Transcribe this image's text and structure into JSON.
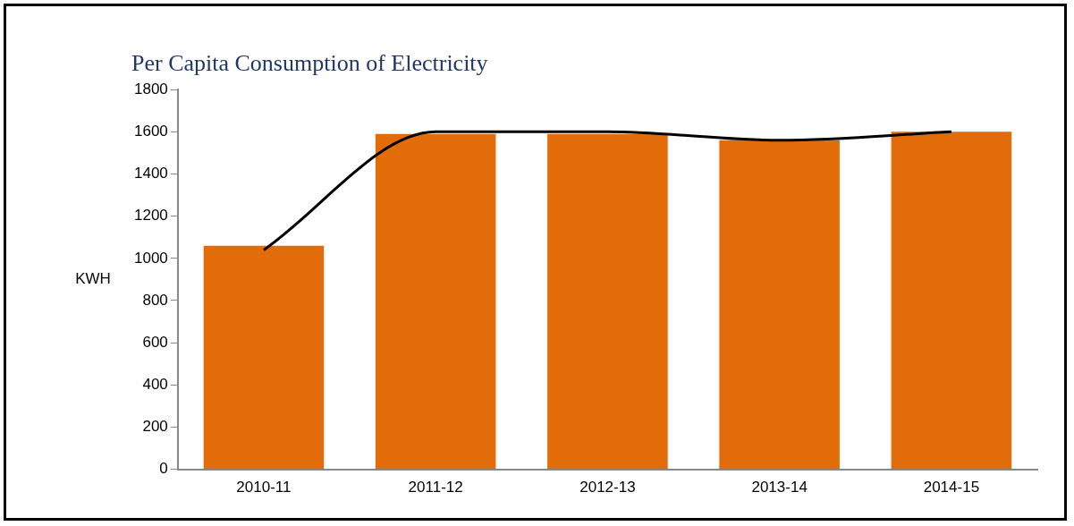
{
  "chart_data": {
    "type": "bar",
    "title": "Per Capita Consumption of Electricity",
    "ylabel": "KWH",
    "categories": [
      "2010-11",
      "2011-12",
      "2012-13",
      "2013-14",
      "2014-15"
    ],
    "series": [
      {
        "color": "#e36c0a",
        "values": [
          1060,
          1590,
          1590,
          1560,
          1600
        ]
      },
      {
        "type": "line",
        "color": "#000000",
        "values": [
          1040,
          1600,
          1600,
          1560,
          1600
        ]
      }
    ],
    "ylim": [
      0,
      1800
    ],
    "yticks": [
      0,
      200,
      400,
      600,
      800,
      1000,
      1200,
      1400,
      1600,
      1800
    ],
    "grid": false,
    "legend": false,
    "marker": "none"
  }
}
